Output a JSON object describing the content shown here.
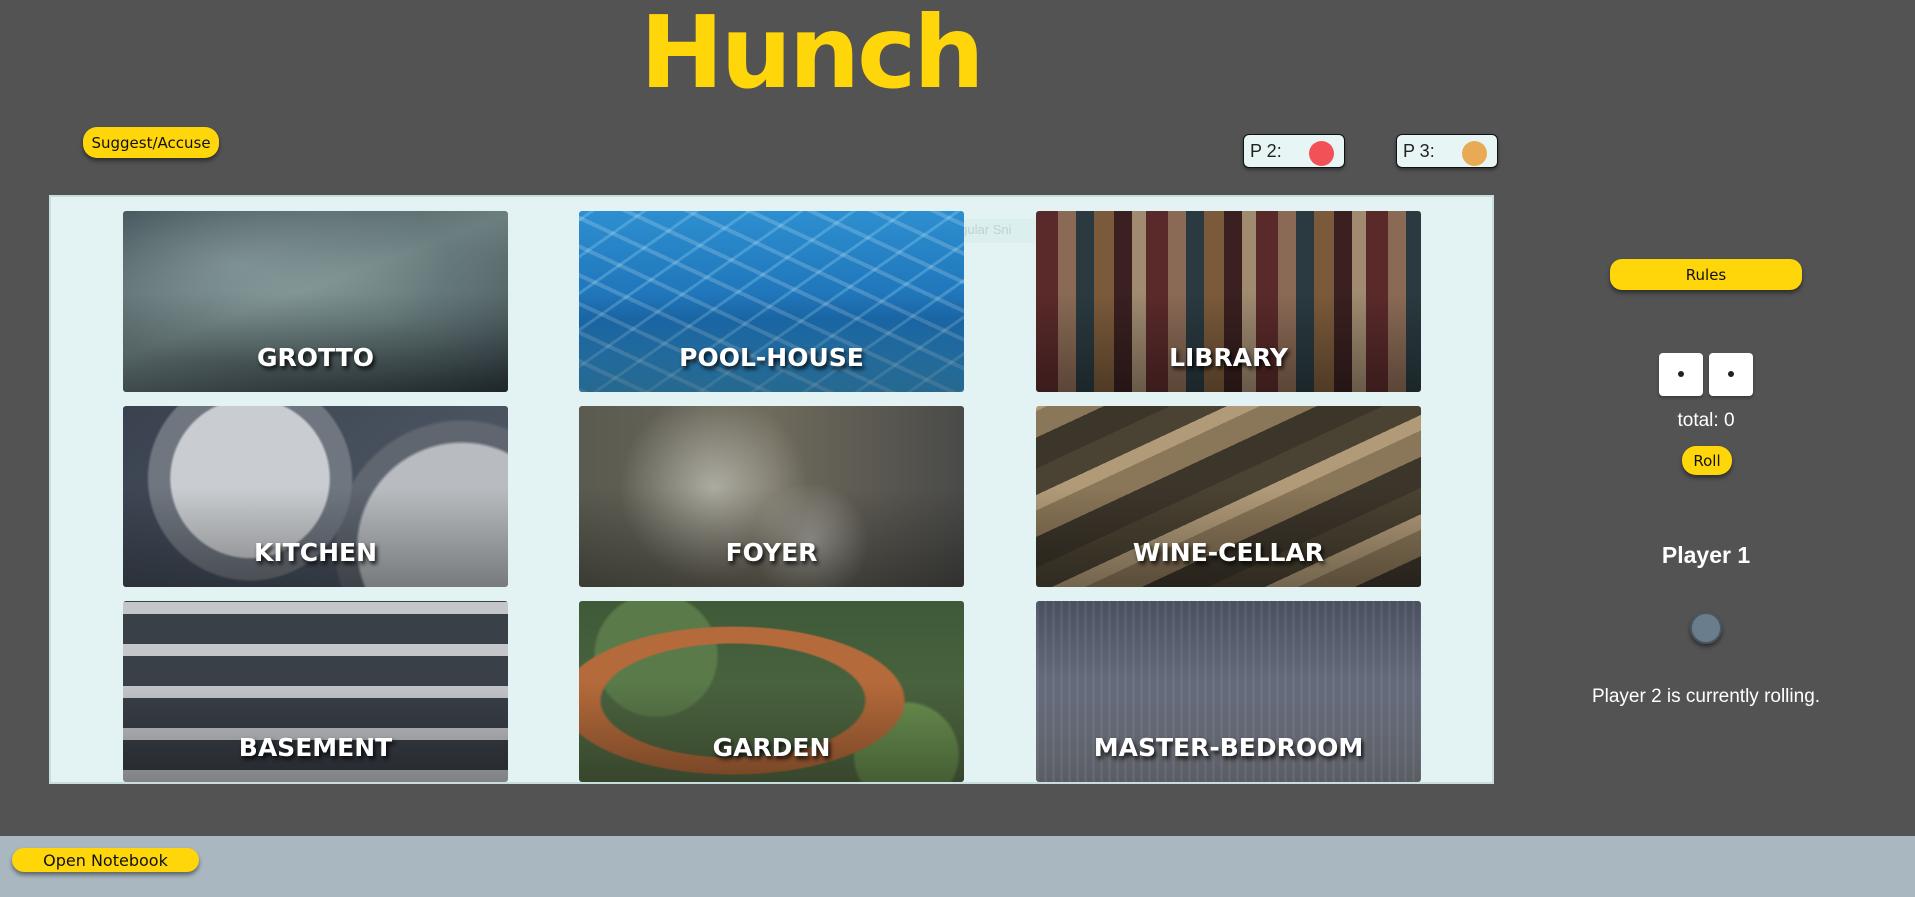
{
  "app": {
    "title": "Hunch"
  },
  "actions": {
    "suggest_accuse": "Suggest/Accuse",
    "rules": "Rules",
    "roll": "Roll",
    "open_notebook": "Open Notebook"
  },
  "players": [
    {
      "label": "P 2:",
      "color": "#f25157"
    },
    {
      "label": "P 3:",
      "color": "#e8aa55"
    }
  ],
  "board": {
    "ghost_tooltip": "Rectangular Sni",
    "rooms": [
      {
        "id": "grotto",
        "label": "GROTTO"
      },
      {
        "id": "poolhouse",
        "label": "POOL-HOUSE"
      },
      {
        "id": "library",
        "label": "LIBRARY"
      },
      {
        "id": "kitchen",
        "label": "KITCHEN"
      },
      {
        "id": "foyer",
        "label": "FOYER"
      },
      {
        "id": "winecellar",
        "label": "WINE-CELLAR"
      },
      {
        "id": "basement",
        "label": "BASEMENT"
      },
      {
        "id": "garden",
        "label": "GARDEN"
      },
      {
        "id": "masterbedroom",
        "label": "MASTER-BEDROOM"
      }
    ]
  },
  "dice": {
    "total": "total: 0"
  },
  "current_player": {
    "name": "Player 1",
    "token_color": "#6a7d8c"
  },
  "status": "Player 2 is currently rolling."
}
